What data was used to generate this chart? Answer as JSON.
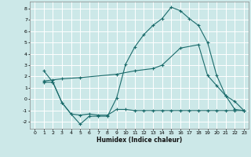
{
  "xlabel": "Humidex (Indice chaleur)",
  "bg_color": "#cce8e8",
  "line_color": "#1a6b6b",
  "grid_color": "#ffffff",
  "xlim": [
    -0.5,
    23.5
  ],
  "ylim": [
    -2.6,
    8.6
  ],
  "yticks": [
    -2,
    -1,
    0,
    1,
    2,
    3,
    4,
    5,
    6,
    7,
    8
  ],
  "xticks": [
    0,
    1,
    2,
    3,
    4,
    5,
    6,
    7,
    8,
    9,
    10,
    11,
    12,
    13,
    14,
    15,
    16,
    17,
    18,
    19,
    20,
    21,
    22,
    23
  ],
  "line1_x": [
    1,
    2,
    3,
    4,
    5,
    6,
    7,
    8,
    9,
    10,
    11,
    12,
    13,
    14,
    15,
    16,
    17,
    18,
    19,
    20,
    21,
    22,
    23
  ],
  "line1_y": [
    2.5,
    1.5,
    -0.3,
    -1.3,
    -2.2,
    -1.5,
    -1.5,
    -1.5,
    0.1,
    3.1,
    4.6,
    5.7,
    6.5,
    7.1,
    8.1,
    7.8,
    7.1,
    6.5,
    5.0,
    2.1,
    0.3,
    -0.9,
    -1.0
  ],
  "line2_x": [
    1,
    2,
    3,
    5,
    9,
    11,
    13,
    14,
    16,
    18,
    19,
    20,
    21,
    22,
    23
  ],
  "line2_y": [
    1.6,
    1.7,
    1.8,
    1.9,
    2.2,
    2.5,
    2.7,
    3.0,
    4.5,
    4.8,
    2.1,
    1.2,
    0.3,
    -0.2,
    -1.0
  ],
  "line3_x": [
    1,
    2,
    3,
    4,
    5,
    6,
    7,
    8,
    9,
    10,
    11,
    12,
    13,
    14,
    15,
    16,
    17,
    18,
    19,
    20,
    21,
    22,
    23
  ],
  "line3_y": [
    1.5,
    1.5,
    -0.3,
    -1.3,
    -1.4,
    -1.3,
    -1.4,
    -1.4,
    -0.9,
    -0.9,
    -1.0,
    -1.0,
    -1.0,
    -1.0,
    -1.0,
    -1.0,
    -1.0,
    -1.0,
    -1.0,
    -1.0,
    -1.0,
    -1.0,
    -1.0
  ]
}
